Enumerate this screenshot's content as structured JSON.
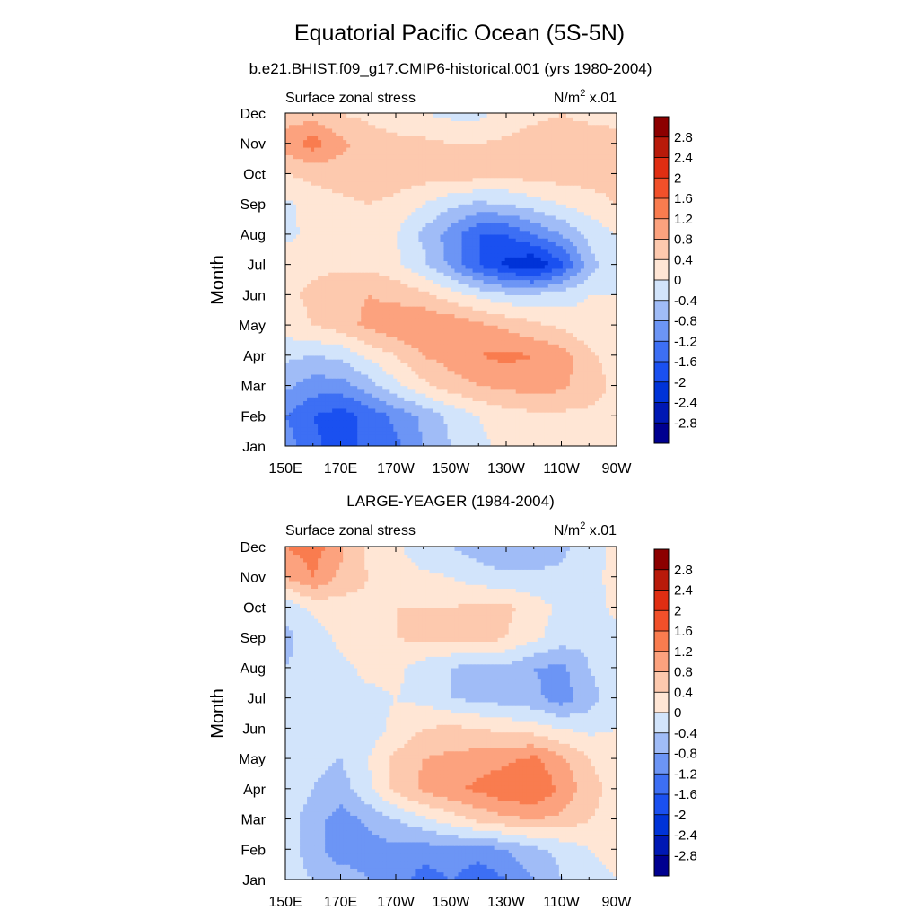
{
  "figure": {
    "title": "Equatorial Pacific Ocean (5S-5N)"
  },
  "palette": {
    "levels": [
      -2.8,
      -2.4,
      -2,
      -1.6,
      -1.2,
      -0.8,
      -0.4,
      0,
      0.4,
      0.8,
      1.2,
      1.6,
      2,
      2.4,
      2.8
    ],
    "colors": [
      "#000090",
      "#0018B4",
      "#0033D8",
      "#1A50F0",
      "#3D6FF4",
      "#6C95F5",
      "#A0BCF7",
      "#D2E4FB",
      "#FFE6D5",
      "#FDC9AE",
      "#FCA27E",
      "#F97C4F",
      "#F1502A",
      "#E02E12",
      "#B81A0A",
      "#8C0000"
    ]
  },
  "chart_data": [
    {
      "type": "heatmap",
      "title": "b.e21.BHIST.f09_g17.CMIP6-historical.001 (yrs 1980-2004)",
      "left_label": "Surface zonal stress",
      "right_label_base": "N/m",
      "right_label_exp": "2",
      "right_label_tail": " x.01",
      "xlabel": "",
      "ylabel": "Month",
      "x_ticks": [
        "150E",
        "170E",
        "170W",
        "150W",
        "130W",
        "110W",
        "90W"
      ],
      "y_ticks": [
        "Jan",
        "Feb",
        "Mar",
        "Apr",
        "May",
        "Jun",
        "Jul",
        "Aug",
        "Sep",
        "Oct",
        "Nov",
        "Dec"
      ],
      "colorbar_labels": [
        "2.8",
        "2.4",
        "2",
        "1.6",
        "1.2",
        "0.8",
        "0.4",
        "0",
        "-0.4",
        "-0.8",
        "-1.2",
        "-1.6",
        "-2",
        "-2.4",
        "-2.8"
      ],
      "x_range_lon": [
        150,
        270
      ],
      "months": [
        "Jan",
        "Feb",
        "Mar",
        "Apr",
        "May",
        "Jun",
        "Jul",
        "Aug",
        "Sep",
        "Oct",
        "Nov",
        "Dec"
      ],
      "lon": [
        150,
        160,
        170,
        180,
        190,
        200,
        210,
        220,
        230,
        240,
        250,
        260,
        270
      ],
      "values": [
        [
          -1.0,
          -1.5,
          -1.8,
          -1.5,
          -1.3,
          -0.8,
          -0.4,
          -0.1,
          0.1,
          0.2,
          0.3,
          0.3,
          0.3
        ],
        [
          -1.2,
          -1.6,
          -1.8,
          -1.5,
          -1.1,
          -0.7,
          -0.3,
          0.0,
          0.2,
          0.3,
          0.3,
          0.3,
          0.3
        ],
        [
          -0.7,
          -1.0,
          -1.0,
          -0.6,
          -0.1,
          0.3,
          0.6,
          0.8,
          0.9,
          1.0,
          0.9,
          0.6,
          0.3
        ],
        [
          -0.3,
          -0.4,
          -0.3,
          0.1,
          0.4,
          0.8,
          1.0,
          1.2,
          1.3,
          1.2,
          1.0,
          0.5,
          0.2
        ],
        [
          0.2,
          0.4,
          0.6,
          0.9,
          1.1,
          1.2,
          1.1,
          0.9,
          0.7,
          0.5,
          0.3,
          0.1,
          0.0
        ],
        [
          0.3,
          0.5,
          0.7,
          0.8,
          0.7,
          0.5,
          0.2,
          -0.1,
          -0.3,
          -0.3,
          -0.2,
          0.0,
          0.0
        ],
        [
          0.2,
          0.3,
          0.3,
          0.3,
          0.1,
          -0.3,
          -0.9,
          -1.6,
          -2.1,
          -2.4,
          -1.7,
          -0.6,
          0.0
        ],
        [
          -0.1,
          0.1,
          0.2,
          0.3,
          0.0,
          -0.5,
          -1.0,
          -1.6,
          -1.6,
          -1.2,
          -0.8,
          -0.3,
          0.0
        ],
        [
          -0.1,
          0.2,
          0.3,
          0.4,
          0.3,
          0.0,
          -0.3,
          -0.5,
          -0.4,
          -0.2,
          0.0,
          0.2,
          0.4
        ],
        [
          0.4,
          0.5,
          0.6,
          0.6,
          0.6,
          0.6,
          0.6,
          0.6,
          0.5,
          0.6,
          0.6,
          0.6,
          0.6
        ],
        [
          1.0,
          1.4,
          0.9,
          0.6,
          0.5,
          0.5,
          0.4,
          0.4,
          0.5,
          0.6,
          0.6,
          0.6,
          0.5
        ],
        [
          0.6,
          0.6,
          0.4,
          0.3,
          0.2,
          0.0,
          -0.1,
          -0.1,
          0.1,
          0.3,
          0.4,
          0.3,
          0.3
        ]
      ]
    },
    {
      "type": "heatmap",
      "title": "LARGE-YEAGER (1984-2004)",
      "left_label": "Surface zonal stress",
      "right_label_base": "N/m",
      "right_label_exp": "2",
      "right_label_tail": " x.01",
      "xlabel": "",
      "ylabel": "Month",
      "x_ticks": [
        "150E",
        "170E",
        "170W",
        "150W",
        "130W",
        "110W",
        "90W"
      ],
      "y_ticks": [
        "Jan",
        "Feb",
        "Mar",
        "Apr",
        "May",
        "Jun",
        "Jul",
        "Aug",
        "Sep",
        "Oct",
        "Nov",
        "Dec"
      ],
      "colorbar_labels": [
        "2.8",
        "2.4",
        "2",
        "1.6",
        "1.2",
        "0.8",
        "0.4",
        "0",
        "-0.4",
        "-0.8",
        "-1.2",
        "-1.6",
        "-2",
        "-2.4",
        "-2.8"
      ],
      "x_range_lon": [
        150,
        270
      ],
      "months": [
        "Jan",
        "Feb",
        "Mar",
        "Apr",
        "May",
        "Jun",
        "Jul",
        "Aug",
        "Sep",
        "Oct",
        "Nov",
        "Dec"
      ],
      "lon": [
        150,
        160,
        170,
        180,
        190,
        200,
        210,
        220,
        230,
        240,
        250,
        260,
        270
      ],
      "values": [
        [
          -0.2,
          -0.4,
          -0.5,
          -0.8,
          -1.0,
          -1.4,
          -1.2,
          -1.5,
          -1.2,
          -0.8,
          -0.4,
          -0.1,
          0.0
        ],
        [
          -0.2,
          -0.6,
          -1.1,
          -1.0,
          -0.9,
          -1.0,
          -0.9,
          -1.0,
          -0.8,
          -0.5,
          -0.3,
          0.0,
          0.1
        ],
        [
          -0.2,
          -0.6,
          -1.0,
          -0.7,
          -0.4,
          -0.1,
          0.2,
          0.5,
          0.7,
          0.8,
          0.7,
          0.4,
          0.2
        ],
        [
          -0.1,
          -0.4,
          -0.6,
          -0.1,
          0.5,
          0.9,
          1.1,
          1.3,
          1.5,
          1.6,
          1.1,
          0.6,
          0.2
        ],
        [
          -0.1,
          -0.3,
          -0.4,
          0.0,
          0.5,
          0.8,
          0.9,
          1.0,
          1.1,
          1.3,
          0.9,
          0.4,
          0.1
        ],
        [
          -0.1,
          -0.3,
          -0.3,
          -0.2,
          0.1,
          0.4,
          0.5,
          0.4,
          0.3,
          0.2,
          0.0,
          -0.1,
          0.0
        ],
        [
          -0.2,
          -0.3,
          -0.2,
          -0.1,
          0.0,
          -0.1,
          -0.4,
          -0.5,
          -0.6,
          -0.7,
          -1.0,
          -0.6,
          -0.1
        ],
        [
          -0.4,
          -0.3,
          -0.1,
          0.1,
          0.1,
          -0.2,
          -0.4,
          -0.6,
          -0.5,
          -0.8,
          -0.9,
          -0.4,
          -0.1
        ],
        [
          -0.5,
          -0.2,
          0.1,
          0.3,
          0.4,
          0.5,
          0.5,
          0.6,
          0.4,
          0.1,
          -0.2,
          -0.3,
          -0.1
        ],
        [
          -0.3,
          0.1,
          0.2,
          0.3,
          0.4,
          0.4,
          0.4,
          0.5,
          0.5,
          0.2,
          -0.1,
          -0.2,
          0.1
        ],
        [
          0.8,
          1.2,
          0.7,
          0.4,
          0.2,
          0.1,
          0.0,
          -0.2,
          -0.3,
          -0.3,
          -0.3,
          -0.1,
          0.1
        ],
        [
          1.2,
          1.4,
          0.9,
          0.3,
          0.1,
          -0.3,
          -0.4,
          -0.6,
          -0.8,
          -0.7,
          -0.5,
          -0.2,
          0.1
        ]
      ]
    }
  ]
}
